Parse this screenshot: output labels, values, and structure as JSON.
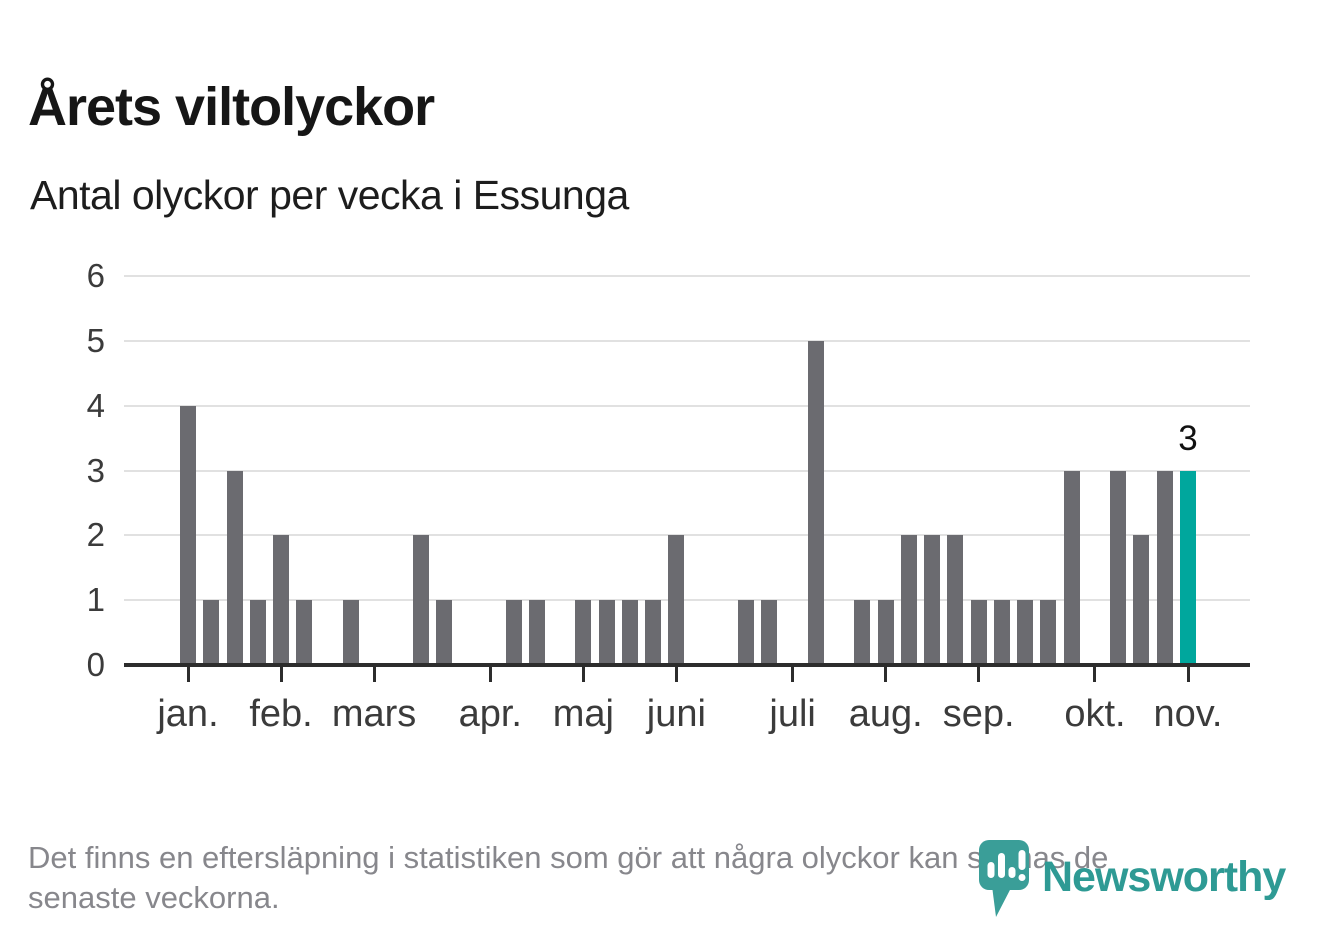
{
  "header": {
    "title": "Årets viltolyckor",
    "subtitle": "Antal olyckor per vecka i Essunga"
  },
  "chart_data": {
    "type": "bar",
    "title": "Årets viltolyckor",
    "subtitle": "Antal olyckor per vecka i Essunga",
    "x_unit": "vecka",
    "categories": [
      1,
      2,
      3,
      4,
      5,
      6,
      7,
      8,
      9,
      10,
      11,
      12,
      13,
      14,
      15,
      16,
      17,
      18,
      19,
      20,
      21,
      22,
      23,
      24,
      25,
      26,
      27,
      28,
      29,
      30,
      31,
      32,
      33,
      34,
      35,
      36,
      37,
      38,
      39,
      40,
      41,
      42,
      43,
      44
    ],
    "values": [
      4,
      1,
      3,
      1,
      2,
      1,
      0,
      1,
      0,
      0,
      2,
      1,
      0,
      0,
      1,
      1,
      0,
      1,
      1,
      1,
      1,
      2,
      0,
      0,
      1,
      1,
      0,
      5,
      0,
      1,
      1,
      2,
      2,
      2,
      1,
      1,
      1,
      1,
      3,
      0,
      3,
      2,
      3,
      3
    ],
    "month_ticks": [
      {
        "label": "jan.",
        "week": 1
      },
      {
        "label": "feb.",
        "week": 5
      },
      {
        "label": "mars",
        "week": 9
      },
      {
        "label": "apr.",
        "week": 14
      },
      {
        "label": "maj",
        "week": 18
      },
      {
        "label": "juni",
        "week": 22
      },
      {
        "label": "juli",
        "week": 27
      },
      {
        "label": "aug.",
        "week": 31
      },
      {
        "label": "sep.",
        "week": 35
      },
      {
        "label": "okt.",
        "week": 40
      },
      {
        "label": "nov.",
        "week": 44
      }
    ],
    "yticks": [
      0,
      1,
      2,
      3,
      4,
      5,
      6
    ],
    "ylim": [
      0,
      6
    ],
    "grid": true,
    "legend": false,
    "highlight_week": 44,
    "annotation": {
      "text": "3",
      "week": 44
    },
    "colors": {
      "bar": "#6B6B70",
      "highlight": "#00A79D",
      "gridline": "#E1E1E1",
      "axis": "#2D2D2D",
      "axis_text": "#3B3B3B"
    }
  },
  "footer": {
    "note": "Det finns en eftersläpning i statistiken som gör att några olyckor kan saknas de senaste veckorna."
  },
  "logo": {
    "brand": "Newsworthy",
    "icon": "newsworthy-pin-icon",
    "brand_color": "#2E9A94",
    "pin_color": "#3A9E98"
  }
}
